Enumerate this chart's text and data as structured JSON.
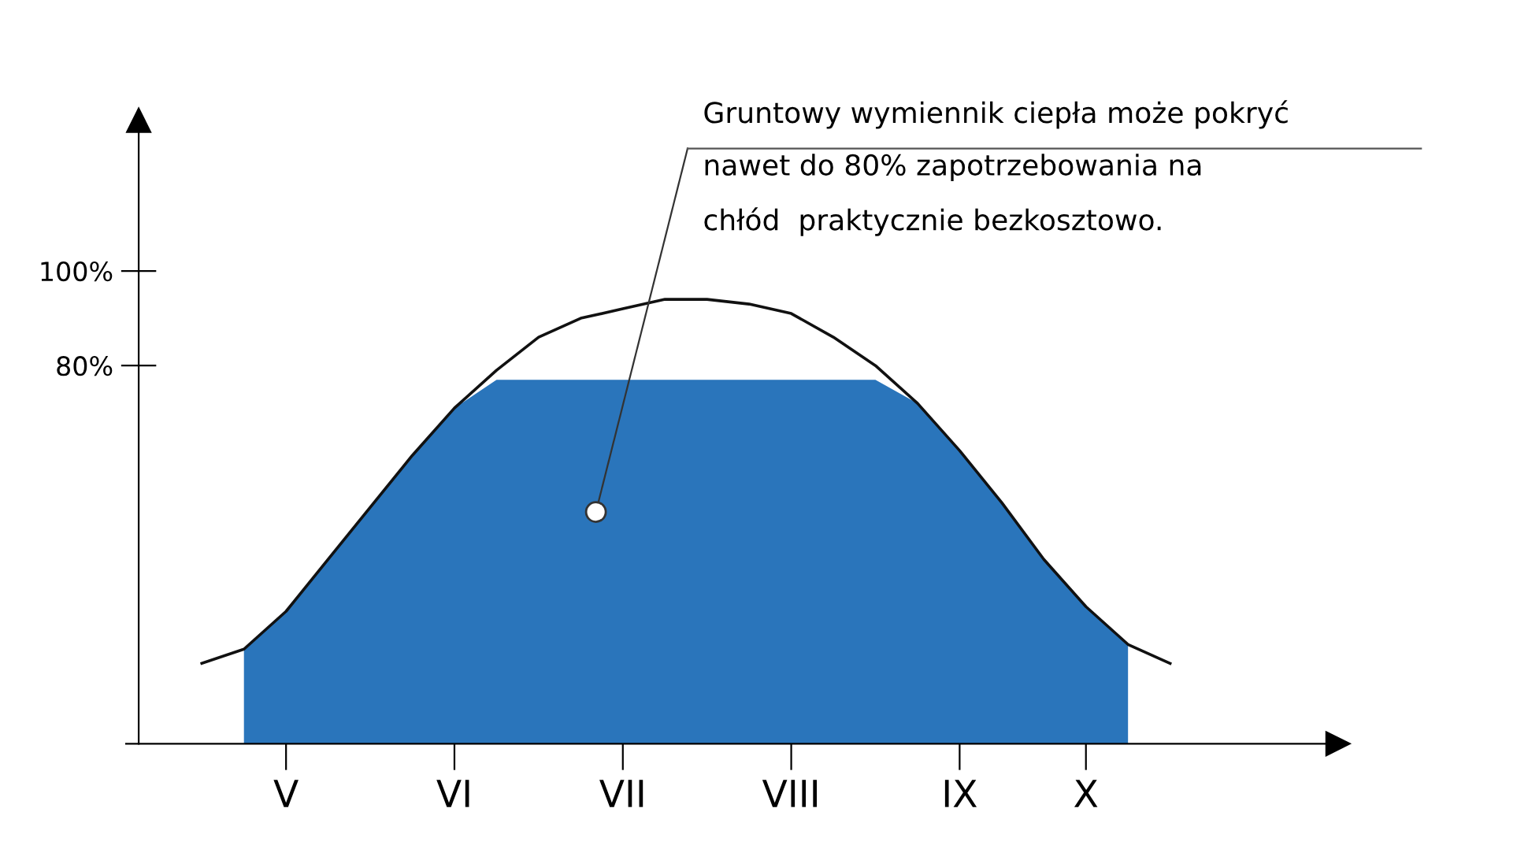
{
  "chart_data": {
    "type": "area",
    "categories": [
      null,
      null,
      "V",
      null,
      null,
      null,
      "VI",
      null,
      null,
      null,
      "VII",
      null,
      null,
      null,
      "VIII",
      null,
      null,
      null,
      "IX",
      null,
      null,
      "X",
      null,
      null
    ],
    "ylim": [
      0,
      132
    ],
    "yticks": [
      {
        "value": 80,
        "label": "80%"
      },
      {
        "value": 100,
        "label": "100%"
      }
    ],
    "grid": false,
    "legend": false,
    "series": [
      {
        "color": "#2a75bb",
        "values": [
          null,
          20,
          28,
          39,
          50,
          61,
          71,
          77,
          77,
          77,
          77,
          77,
          77,
          77,
          77,
          77,
          77,
          72,
          62,
          51,
          39,
          29,
          21,
          null
        ]
      },
      {
        "type": "line",
        "color": "#111111",
        "values": [
          17,
          20,
          28,
          39,
          50,
          61,
          71,
          79,
          86,
          90,
          92,
          94,
          94,
          93,
          91,
          86,
          80,
          72,
          62,
          51,
          39,
          29,
          21,
          17
        ]
      }
    ],
    "annotations": [
      "Gruntowy wymiennik ciepła może pokryć\nnawet do 80% zapotrzebowania na\nchłód  praktycznie bezkosztowo."
    ]
  }
}
